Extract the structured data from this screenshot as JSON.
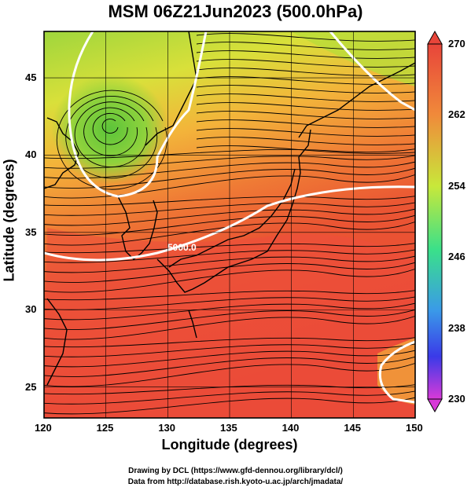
{
  "title": "MSM 06Z21Jun2023 (500.0hPa)",
  "xlabel": "Longitude (degrees)",
  "ylabel": "Latitude  (degrees)",
  "x_ticks": [
    "120",
    "125",
    "130",
    "135",
    "140",
    "145",
    "150"
  ],
  "y_ticks": [
    "25",
    "30",
    "35",
    "40",
    "45"
  ],
  "contour_label": "5000.0",
  "colorbar": {
    "labels": [
      "270",
      "262",
      "254",
      "246",
      "238",
      "230"
    ],
    "colors": [
      "#e8453a",
      "#f08a3a",
      "#c8e83a",
      "#3ae08a",
      "#3a9ae8",
      "#3a3ae8",
      "#d83ad8"
    ]
  },
  "credits": {
    "line1": "Drawing by DCL (https://www.gfd-dennou.org/library/dcl/)",
    "line2": "Data from http://database.rish.kyoto-u.ac.jp/arch/jmadata/"
  },
  "map": {
    "lon_range": [
      120,
      150
    ],
    "lat_range": [
      23,
      48
    ],
    "palette": {
      "high": "#ee5533",
      "mid": "#f39a3a",
      "low": "#a8d83a",
      "min": "#6cc83a"
    }
  }
}
